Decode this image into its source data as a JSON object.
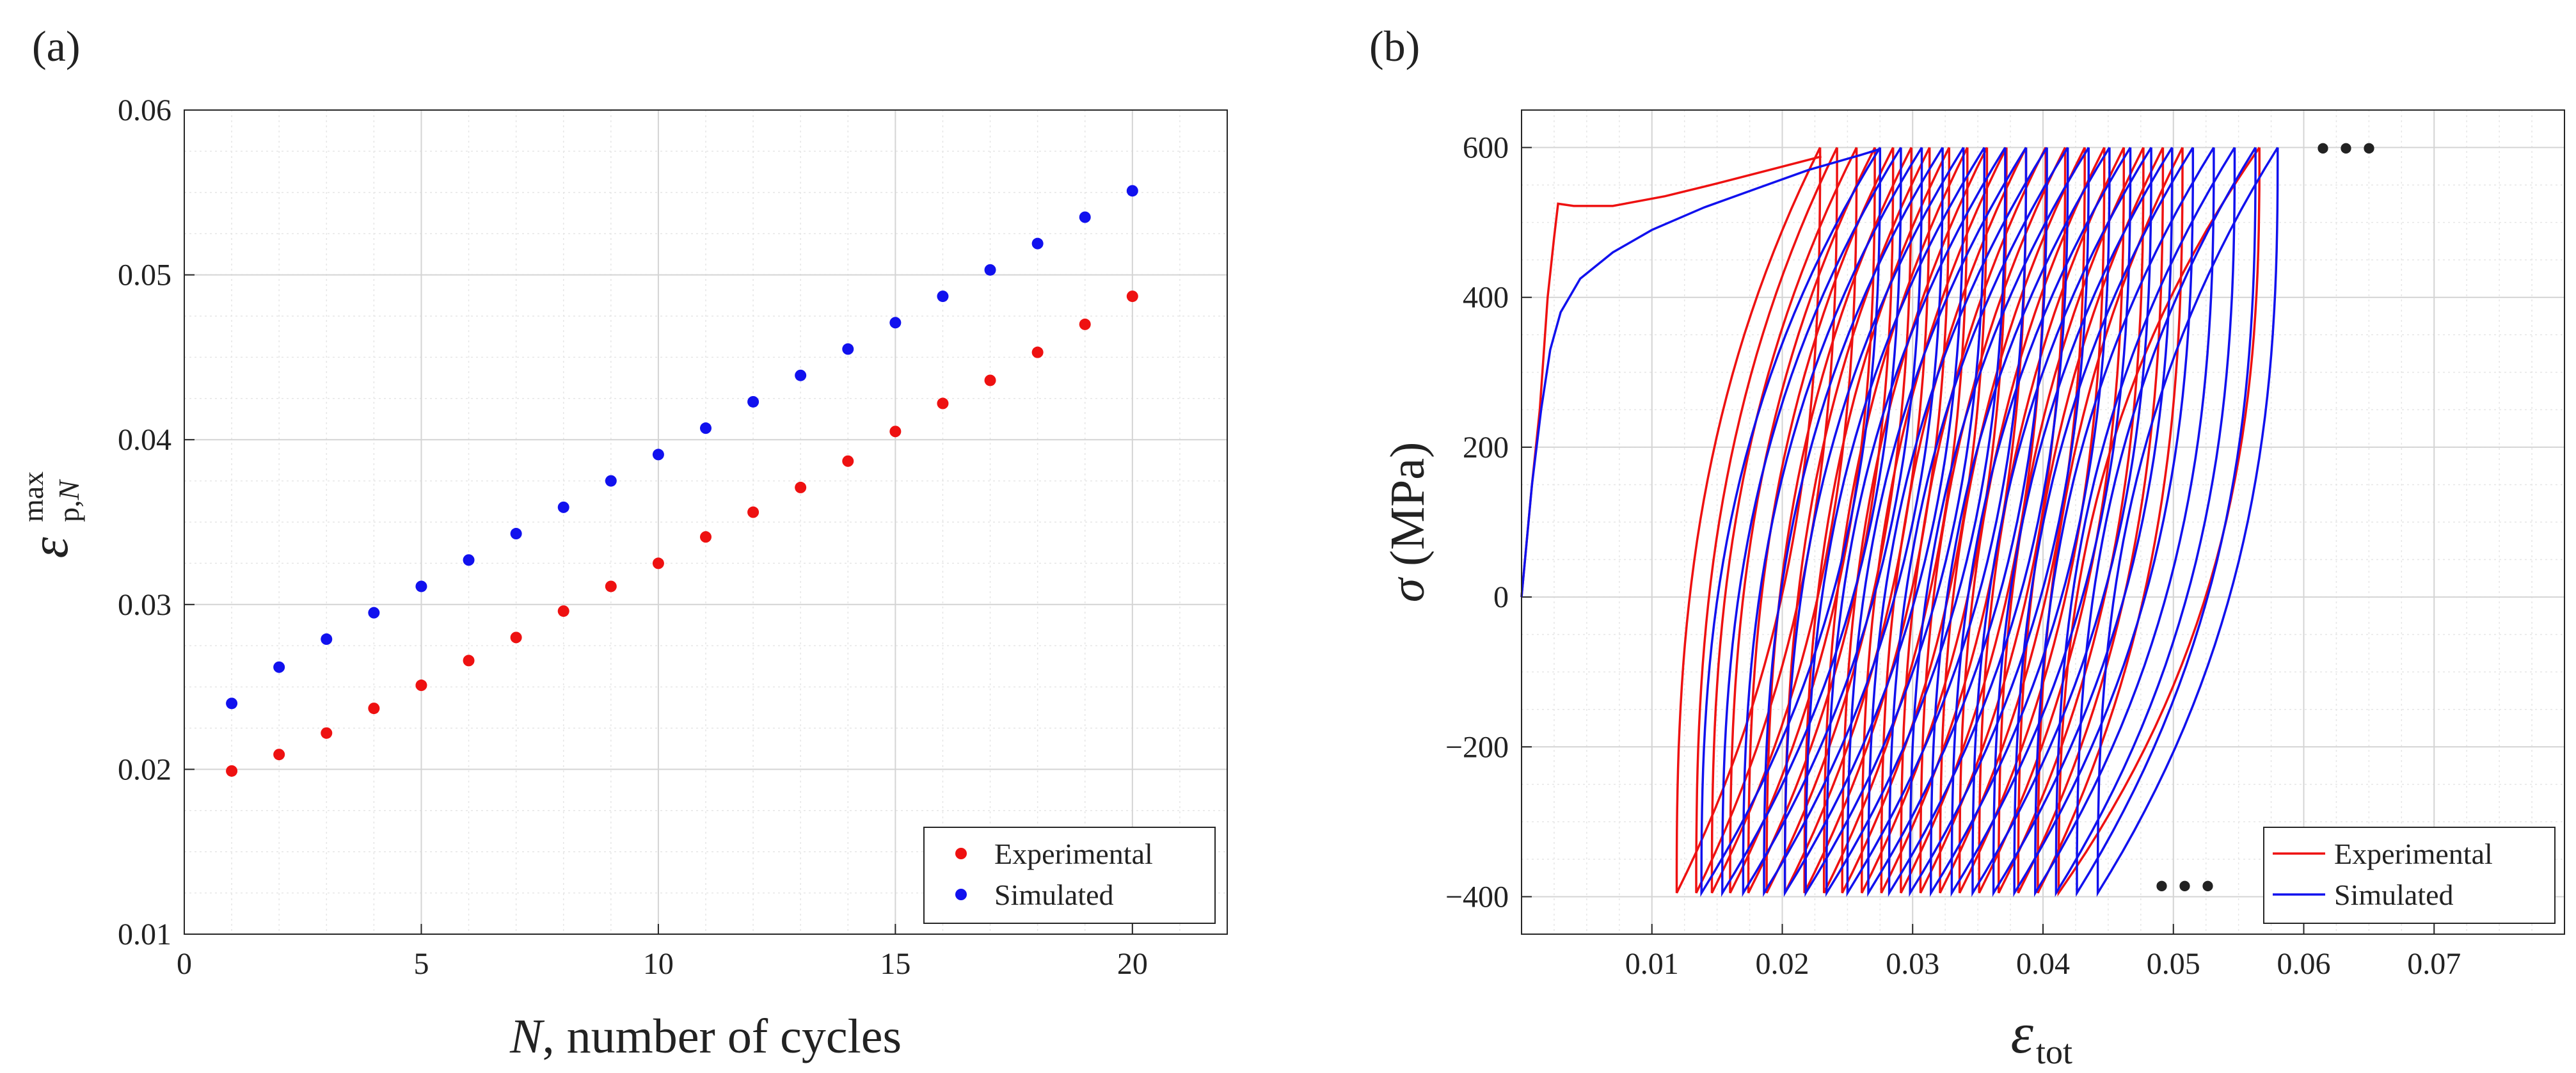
{
  "chart_data": [
    {
      "panel_label": "(a)",
      "type": "scatter",
      "title": "",
      "xlabel_italic": "N",
      "xlabel_rest": ", number of cycles",
      "ylabel_symbol": "ε",
      "ylabel_sub": "p,",
      "ylabel_sub_italic": "N",
      "ylabel_sup": "max",
      "xlim": [
        0,
        22
      ],
      "ylim": [
        0.01,
        0.06
      ],
      "xticks": [
        0,
        5,
        10,
        15,
        20
      ],
      "yticks": [
        0.01,
        0.02,
        0.03,
        0.04,
        0.05,
        0.06
      ],
      "xtick_labels": [
        "0",
        "5",
        "10",
        "15",
        "20"
      ],
      "ytick_labels": [
        "0.01",
        "0.02",
        "0.03",
        "0.04",
        "0.05",
        "0.06"
      ],
      "grid": true,
      "minor_grid": true,
      "legend_position": "bottom-right",
      "series": [
        {
          "name": "Experimental",
          "color": "#ee1111",
          "x": [
            1,
            2,
            3,
            4,
            5,
            6,
            7,
            8,
            9,
            10,
            11,
            12,
            13,
            14,
            15,
            16,
            17,
            18,
            19,
            20
          ],
          "y": [
            0.0199,
            0.0209,
            0.0222,
            0.0237,
            0.0251,
            0.0266,
            0.028,
            0.0296,
            0.0311,
            0.0325,
            0.0341,
            0.0356,
            0.0371,
            0.0387,
            0.0405,
            0.0422,
            0.0436,
            0.0453,
            0.047,
            0.0487
          ]
        },
        {
          "name": "Simulated",
          "color": "#1111ee",
          "x": [
            1,
            2,
            3,
            4,
            5,
            6,
            7,
            8,
            9,
            10,
            11,
            12,
            13,
            14,
            15,
            16,
            17,
            18,
            19,
            20
          ],
          "y": [
            0.024,
            0.0262,
            0.0279,
            0.0295,
            0.0311,
            0.0327,
            0.0343,
            0.0359,
            0.0375,
            0.0391,
            0.0407,
            0.0423,
            0.0439,
            0.0455,
            0.0471,
            0.0487,
            0.0503,
            0.0519,
            0.0535,
            0.0551
          ]
        }
      ]
    },
    {
      "panel_label": "(b)",
      "type": "line",
      "title": "",
      "xlabel_symbol": "ε",
      "xlabel_sub": "tot",
      "ylabel_italic": "σ",
      "ylabel_rest": " (MPa)",
      "xlim": [
        0,
        0.08
      ],
      "ylim": [
        -450,
        650
      ],
      "xticks": [
        0.01,
        0.02,
        0.03,
        0.04,
        0.05,
        0.06,
        0.07
      ],
      "yticks": [
        -400,
        -200,
        0,
        200,
        400,
        600
      ],
      "xtick_labels": [
        "0.01",
        "0.02",
        "0.03",
        "0.04",
        "0.05",
        "0.06",
        "0.07"
      ],
      "ytick_labels": [
        "−400",
        "−200",
        "0",
        "200",
        "400",
        "600"
      ],
      "grid": true,
      "minor_grid": true,
      "legend_position": "bottom-right",
      "ellipsis_top": "• • •",
      "ellipsis_bottom": "• • •",
      "stress_max": 600,
      "stress_min": -395,
      "series": [
        {
          "name": "Experimental",
          "color": "#ee1111",
          "initial_loading": [
            [
              0,
              0
            ],
            [
              0.0008,
              150
            ],
            [
              0.0014,
              250
            ],
            [
              0.002,
              400
            ],
            [
              0.0025,
              480
            ],
            [
              0.0028,
              525
            ],
            [
              0.004,
              522
            ],
            [
              0.007,
              522
            ],
            [
              0.011,
              535
            ],
            [
              0.015,
              552
            ],
            [
              0.019,
              570
            ],
            [
              0.023,
              588
            ]
          ],
          "cycle_min_strains": [
            0.0119,
            0.0134,
            0.0146,
            0.016,
            0.0174,
            0.0188,
            0.0202,
            0.0217,
            0.0232,
            0.0246,
            0.0261,
            0.0276,
            0.0291,
            0.0306,
            0.0321,
            0.0336,
            0.0351,
            0.0366,
            0.0381,
            0.0396,
            0.0412
          ],
          "cycle_max_strains": [
            0.0229,
            0.0242,
            0.0257,
            0.0271,
            0.0285,
            0.0299,
            0.0313,
            0.0328,
            0.0342,
            0.0357,
            0.0372,
            0.0387,
            0.0402,
            0.0417,
            0.0432,
            0.0447,
            0.0462,
            0.0477,
            0.0492,
            0.0507,
            0.0566
          ]
        },
        {
          "name": "Simulated",
          "color": "#1111ee",
          "initial_loading": [
            [
              0,
              0
            ],
            [
              0.0008,
              150
            ],
            [
              0.0015,
              250
            ],
            [
              0.0022,
              330
            ],
            [
              0.003,
              380
            ],
            [
              0.0045,
              425
            ],
            [
              0.007,
              460
            ],
            [
              0.01,
              490
            ],
            [
              0.014,
              520
            ],
            [
              0.018,
              545
            ],
            [
              0.022,
              570
            ],
            [
              0.026,
              590
            ],
            [
              0.0275,
              598
            ]
          ],
          "cycle_min_strains": [
            0.0138,
            0.0154,
            0.017,
            0.0186,
            0.0202,
            0.0218,
            0.0234,
            0.025,
            0.0266,
            0.0282,
            0.0298,
            0.0314,
            0.033,
            0.0346,
            0.0362,
            0.0378,
            0.0394,
            0.041,
            0.0426,
            0.0442
          ],
          "cycle_max_strains": [
            0.0275,
            0.0291,
            0.0307,
            0.0323,
            0.0339,
            0.0355,
            0.0371,
            0.0387,
            0.0403,
            0.0419,
            0.0435,
            0.0451,
            0.0467,
            0.0483,
            0.0499,
            0.0515,
            0.0531,
            0.0547,
            0.0563,
            0.058
          ]
        }
      ]
    }
  ]
}
